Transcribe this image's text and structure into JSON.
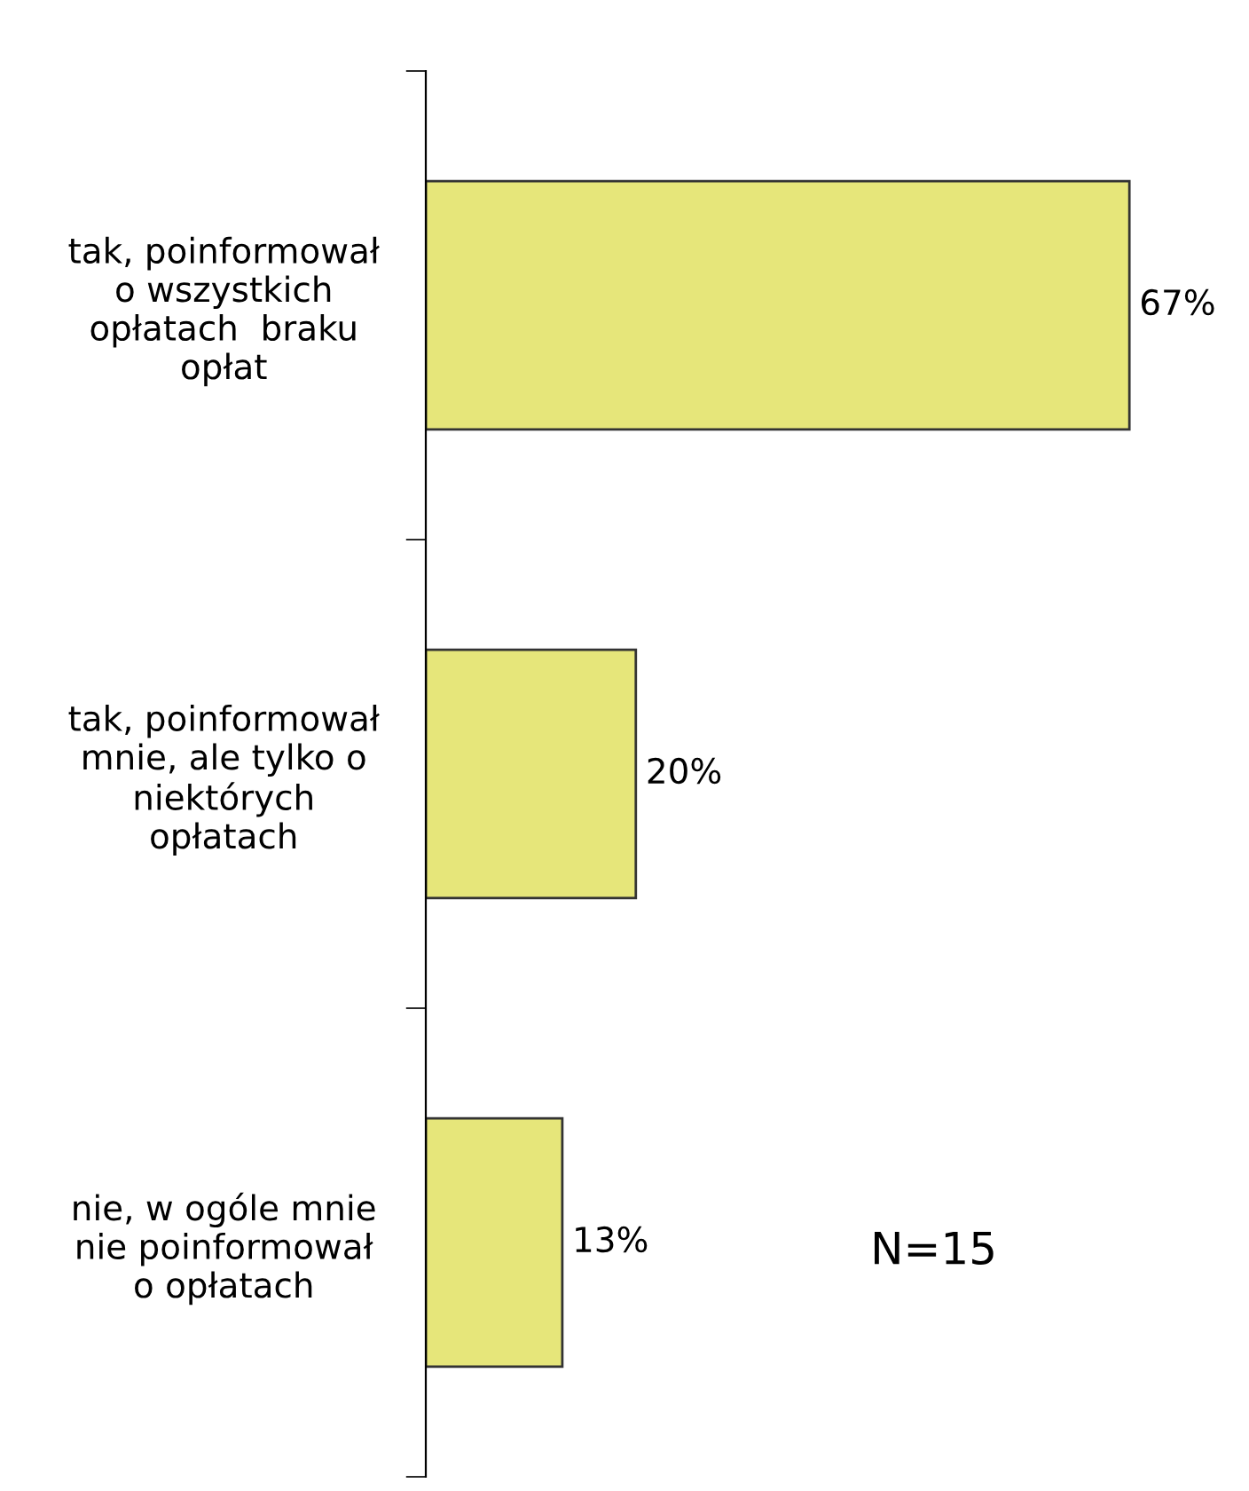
{
  "chart_data": {
    "type": "bar",
    "orientation": "horizontal",
    "categories": [
      "tak, poinformował\no wszystkich\nopłatach  braku\nopłat",
      "tak, poinformował\nmnie, ale tylko o\nniektórych\nopłatach",
      "nie, w ogóle mnie\nnie poinformował\no opłatach"
    ],
    "values": [
      67,
      20,
      13
    ],
    "value_labels": [
      "67%",
      "20%",
      "13%"
    ],
    "color": "#e6e67a",
    "annotations": [
      "N=15"
    ],
    "grid": false,
    "legend": false
  }
}
